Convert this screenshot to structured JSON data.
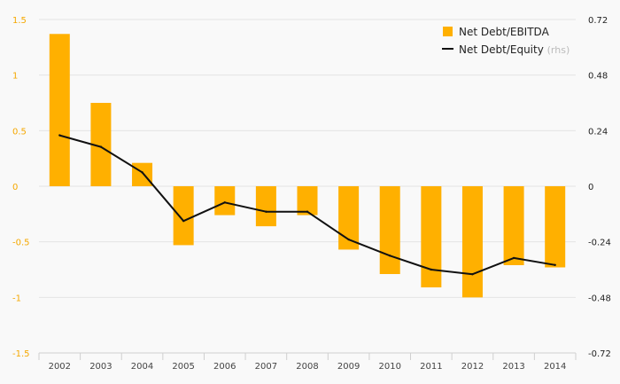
{
  "chart_data": {
    "type": "bar",
    "categories": [
      "2002",
      "2003",
      "2004",
      "2005",
      "2006",
      "2007",
      "2008",
      "2009",
      "2010",
      "2011",
      "2012",
      "2013",
      "2014"
    ],
    "series": [
      {
        "name": "Net Debt/EBITDA",
        "type": "bar",
        "axis": "left",
        "color": "#ffb000",
        "values": [
          1.37,
          0.75,
          0.21,
          -0.53,
          -0.26,
          -0.36,
          -0.26,
          -0.57,
          -0.79,
          -0.91,
          -1.0,
          -0.71,
          -0.73
        ]
      },
      {
        "name": "Net Debt/Equity",
        "name_suffix": "(rhs)",
        "type": "line",
        "axis": "right",
        "color": "#111111",
        "values": [
          0.22,
          0.17,
          0.06,
          -0.15,
          -0.07,
          -0.11,
          -0.11,
          -0.23,
          -0.3,
          -0.36,
          -0.38,
          -0.31,
          -0.34
        ]
      }
    ],
    "y_left": {
      "ticks": [
        1.5,
        1,
        0.5,
        0,
        -0.5,
        -1,
        -1.5
      ],
      "tick_labels": [
        "1.5",
        "1",
        "0.5",
        "0",
        "-0.5",
        "-1",
        "-1.5"
      ],
      "ylim": [
        -1.5,
        1.5
      ],
      "color": "#f5a800"
    },
    "y_right": {
      "ticks": [
        0.72,
        0.48,
        0.24,
        0,
        -0.24,
        -0.48,
        -0.72
      ],
      "tick_labels": [
        "0.72",
        "0.48",
        "0.24",
        "0",
        "-0.24",
        "-0.48",
        "-0.72"
      ],
      "ylim": [
        -0.72,
        0.72
      ],
      "color": "#222222"
    },
    "grid": true,
    "legend_position": "top-right",
    "title": "",
    "xlabel": "",
    "ylabel": ""
  }
}
